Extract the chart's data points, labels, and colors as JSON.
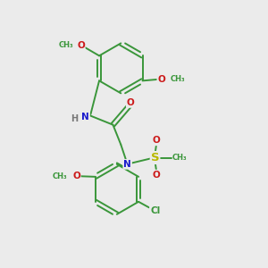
{
  "background_color": "#ebebeb",
  "bond_color": "#3a963a",
  "atom_colors": {
    "N": "#1a1acc",
    "O": "#cc1a1a",
    "S": "#b8b800",
    "Cl": "#3a963a",
    "H": "#777777"
  },
  "figsize": [
    3.0,
    3.0
  ],
  "dpi": 100,
  "xlim": [
    0,
    10
  ],
  "ylim": [
    0,
    10
  ]
}
